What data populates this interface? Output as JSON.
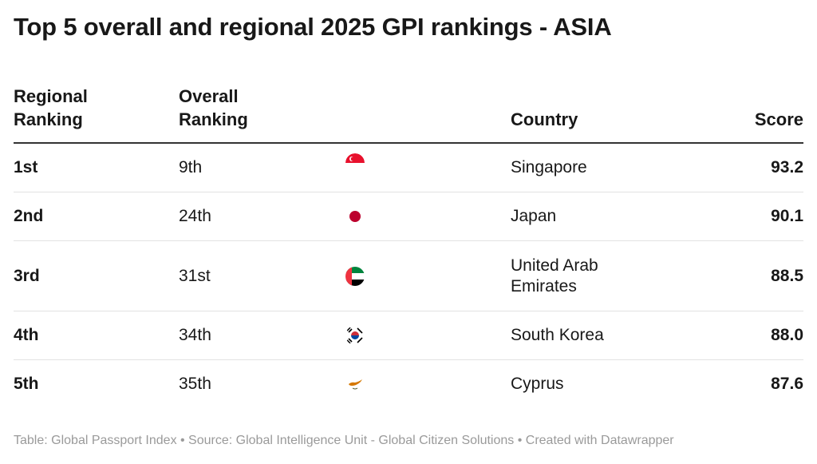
{
  "title": "Top 5 overall and regional 2025 GPI rankings - ASIA",
  "headers": {
    "regional": "Regional Ranking",
    "overall": "Overall Ranking",
    "country": "Country",
    "score": "Score"
  },
  "rows": [
    {
      "regional": "1st",
      "overall": "9th",
      "flag": "singapore-flag-icon",
      "country": "Singapore",
      "score": "93.2"
    },
    {
      "regional": "2nd",
      "overall": "24th",
      "flag": "japan-flag-icon",
      "country": "Japan",
      "score": "90.1"
    },
    {
      "regional": "3rd",
      "overall": "31st",
      "flag": "uae-flag-icon",
      "country": "United Arab Emirates",
      "score": "88.5"
    },
    {
      "regional": "4th",
      "overall": "34th",
      "flag": "south-korea-flag-icon",
      "country": "South Korea",
      "score": "88.0"
    },
    {
      "regional": "5th",
      "overall": "35th",
      "flag": "cyprus-flag-icon",
      "country": "Cyprus",
      "score": "87.6"
    }
  ],
  "footer": "Table: Global Passport Index • Source: Global Intelligence Unit - Global Citizen Solutions  • Created with Datawrapper"
}
